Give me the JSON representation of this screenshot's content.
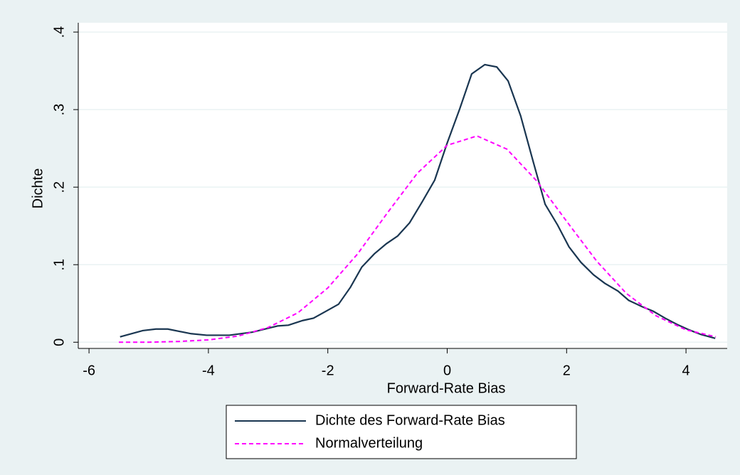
{
  "chart_data": {
    "type": "line",
    "x_label": "Forward-Rate Bias",
    "y_label": "Dichte",
    "xlim": [
      -6.18,
      4.69
    ],
    "ylim": [
      -0.008,
      0.412
    ],
    "xticks": [
      -6,
      -4,
      -2,
      0,
      2,
      4
    ],
    "yticks": [
      0,
      {
        "value": 0.1,
        "label": ".1"
      },
      {
        "value": 0.2,
        "label": ".2"
      },
      {
        "value": 0.3,
        "label": ".3"
      },
      {
        "value": 0.4,
        "label": ".4"
      }
    ],
    "grid": true,
    "legend": "bottom",
    "series": [
      {
        "name": "Dichte des Forward-Rate Bias",
        "color": "#1a3651",
        "dash": "solid",
        "x": [
          -5.48,
          -5.1,
          -4.88,
          -4.68,
          -4.29,
          -4.03,
          -3.65,
          -3.26,
          -3.05,
          -2.84,
          -2.66,
          -2.42,
          -2.24,
          -2.03,
          -1.82,
          -1.62,
          -1.43,
          -1.22,
          -1.02,
          -0.83,
          -0.63,
          -0.42,
          -0.21,
          0,
          0.21,
          0.41,
          0.63,
          0.83,
          1.02,
          1.23,
          1.44,
          1.64,
          1.85,
          2.04,
          2.24,
          2.45,
          2.64,
          2.86,
          3.04,
          3.26,
          3.45,
          3.65,
          3.85,
          4.05,
          4.25,
          4.49
        ],
        "values": [
          0.007,
          0.015,
          0.017,
          0.017,
          0.011,
          0.009,
          0.009,
          0.013,
          0.017,
          0.021,
          0.022,
          0.028,
          0.031,
          0.04,
          0.049,
          0.071,
          0.097,
          0.114,
          0.127,
          0.137,
          0.154,
          0.181,
          0.209,
          0.257,
          0.301,
          0.346,
          0.358,
          0.355,
          0.337,
          0.292,
          0.233,
          0.178,
          0.151,
          0.123,
          0.103,
          0.087,
          0.076,
          0.066,
          0.054,
          0.046,
          0.04,
          0.031,
          0.023,
          0.016,
          0.01,
          0.005
        ]
      },
      {
        "name": "Normalverteilung",
        "color": "#ff00ff",
        "dash": "dashed",
        "x": [
          -5.5,
          -5,
          -4.5,
          -4,
          -3.5,
          -3,
          -2.5,
          -2,
          -1.5,
          -1,
          -0.5,
          0,
          0.5,
          1,
          1.5,
          2,
          2.5,
          3,
          3.5,
          4,
          4.5
        ],
        "values": [
          0,
          0,
          0.001,
          0.003,
          0.008,
          0.019,
          0.038,
          0.07,
          0.114,
          0.167,
          0.218,
          0.254,
          0.266,
          0.249,
          0.208,
          0.156,
          0.105,
          0.063,
          0.034,
          0.016,
          0.007
        ]
      }
    ]
  }
}
